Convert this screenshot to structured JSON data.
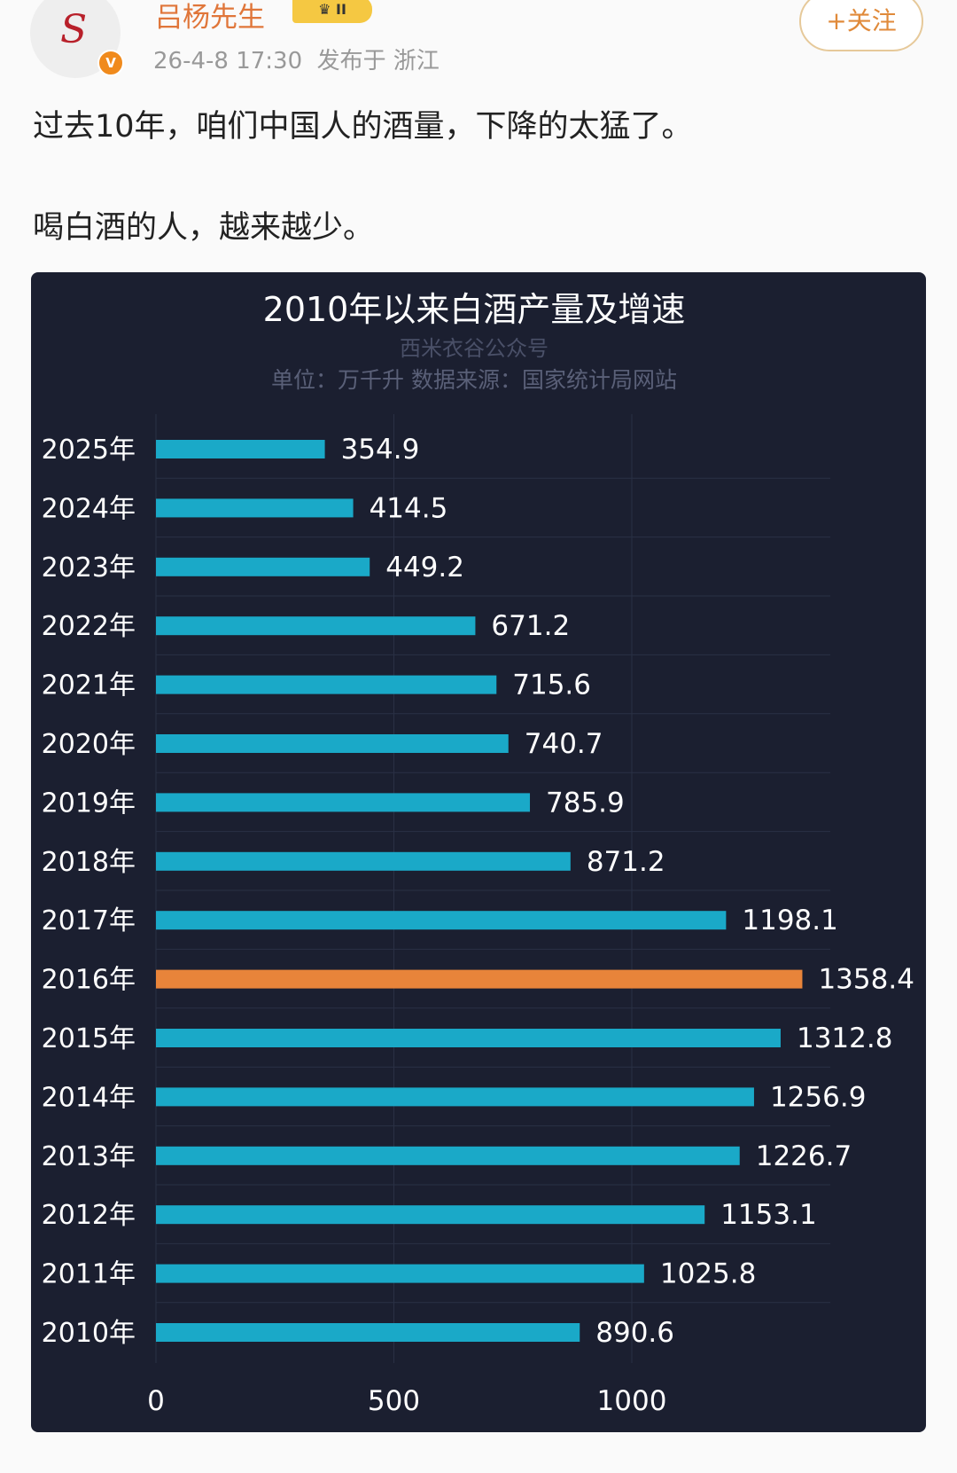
{
  "author": {
    "name": "吕杨先生",
    "avatar_letter": "S",
    "badge": "II",
    "verified": "V",
    "time": "26-4-8 17:30",
    "location": "发布于 浙江"
  },
  "follow_label": "+关注",
  "post": {
    "line1": "过去10年，咱们中国人的酒量，下降的太猛了。",
    "line2": "喝白酒的人，越来越少。"
  },
  "colors": {
    "panel_bg": "#1b1f30",
    "bar": "#1aa9c8",
    "highlight": "#e8843a"
  },
  "chart_data": {
    "type": "bar",
    "orientation": "horizontal",
    "title": "2010年以来白酒产量及增速",
    "watermark": "西米衣谷公众号",
    "subtitle": "单位：万千升  数据来源：国家统计局网站",
    "categories": [
      "2025年",
      "2024年",
      "2023年",
      "2022年",
      "2021年",
      "2020年",
      "2019年",
      "2018年",
      "2017年",
      "2016年",
      "2015年",
      "2014年",
      "2013年",
      "2012年",
      "2011年",
      "2010年"
    ],
    "values": [
      354.9,
      414.5,
      449.2,
      671.2,
      715.6,
      740.7,
      785.9,
      871.2,
      1198.1,
      1358.4,
      1312.8,
      1256.9,
      1226.7,
      1153.1,
      1025.8,
      890.6
    ],
    "highlight": "2016年",
    "xticks": [
      0,
      500,
      1000
    ],
    "xlim": [
      0,
      1400
    ],
    "grid": true
  }
}
